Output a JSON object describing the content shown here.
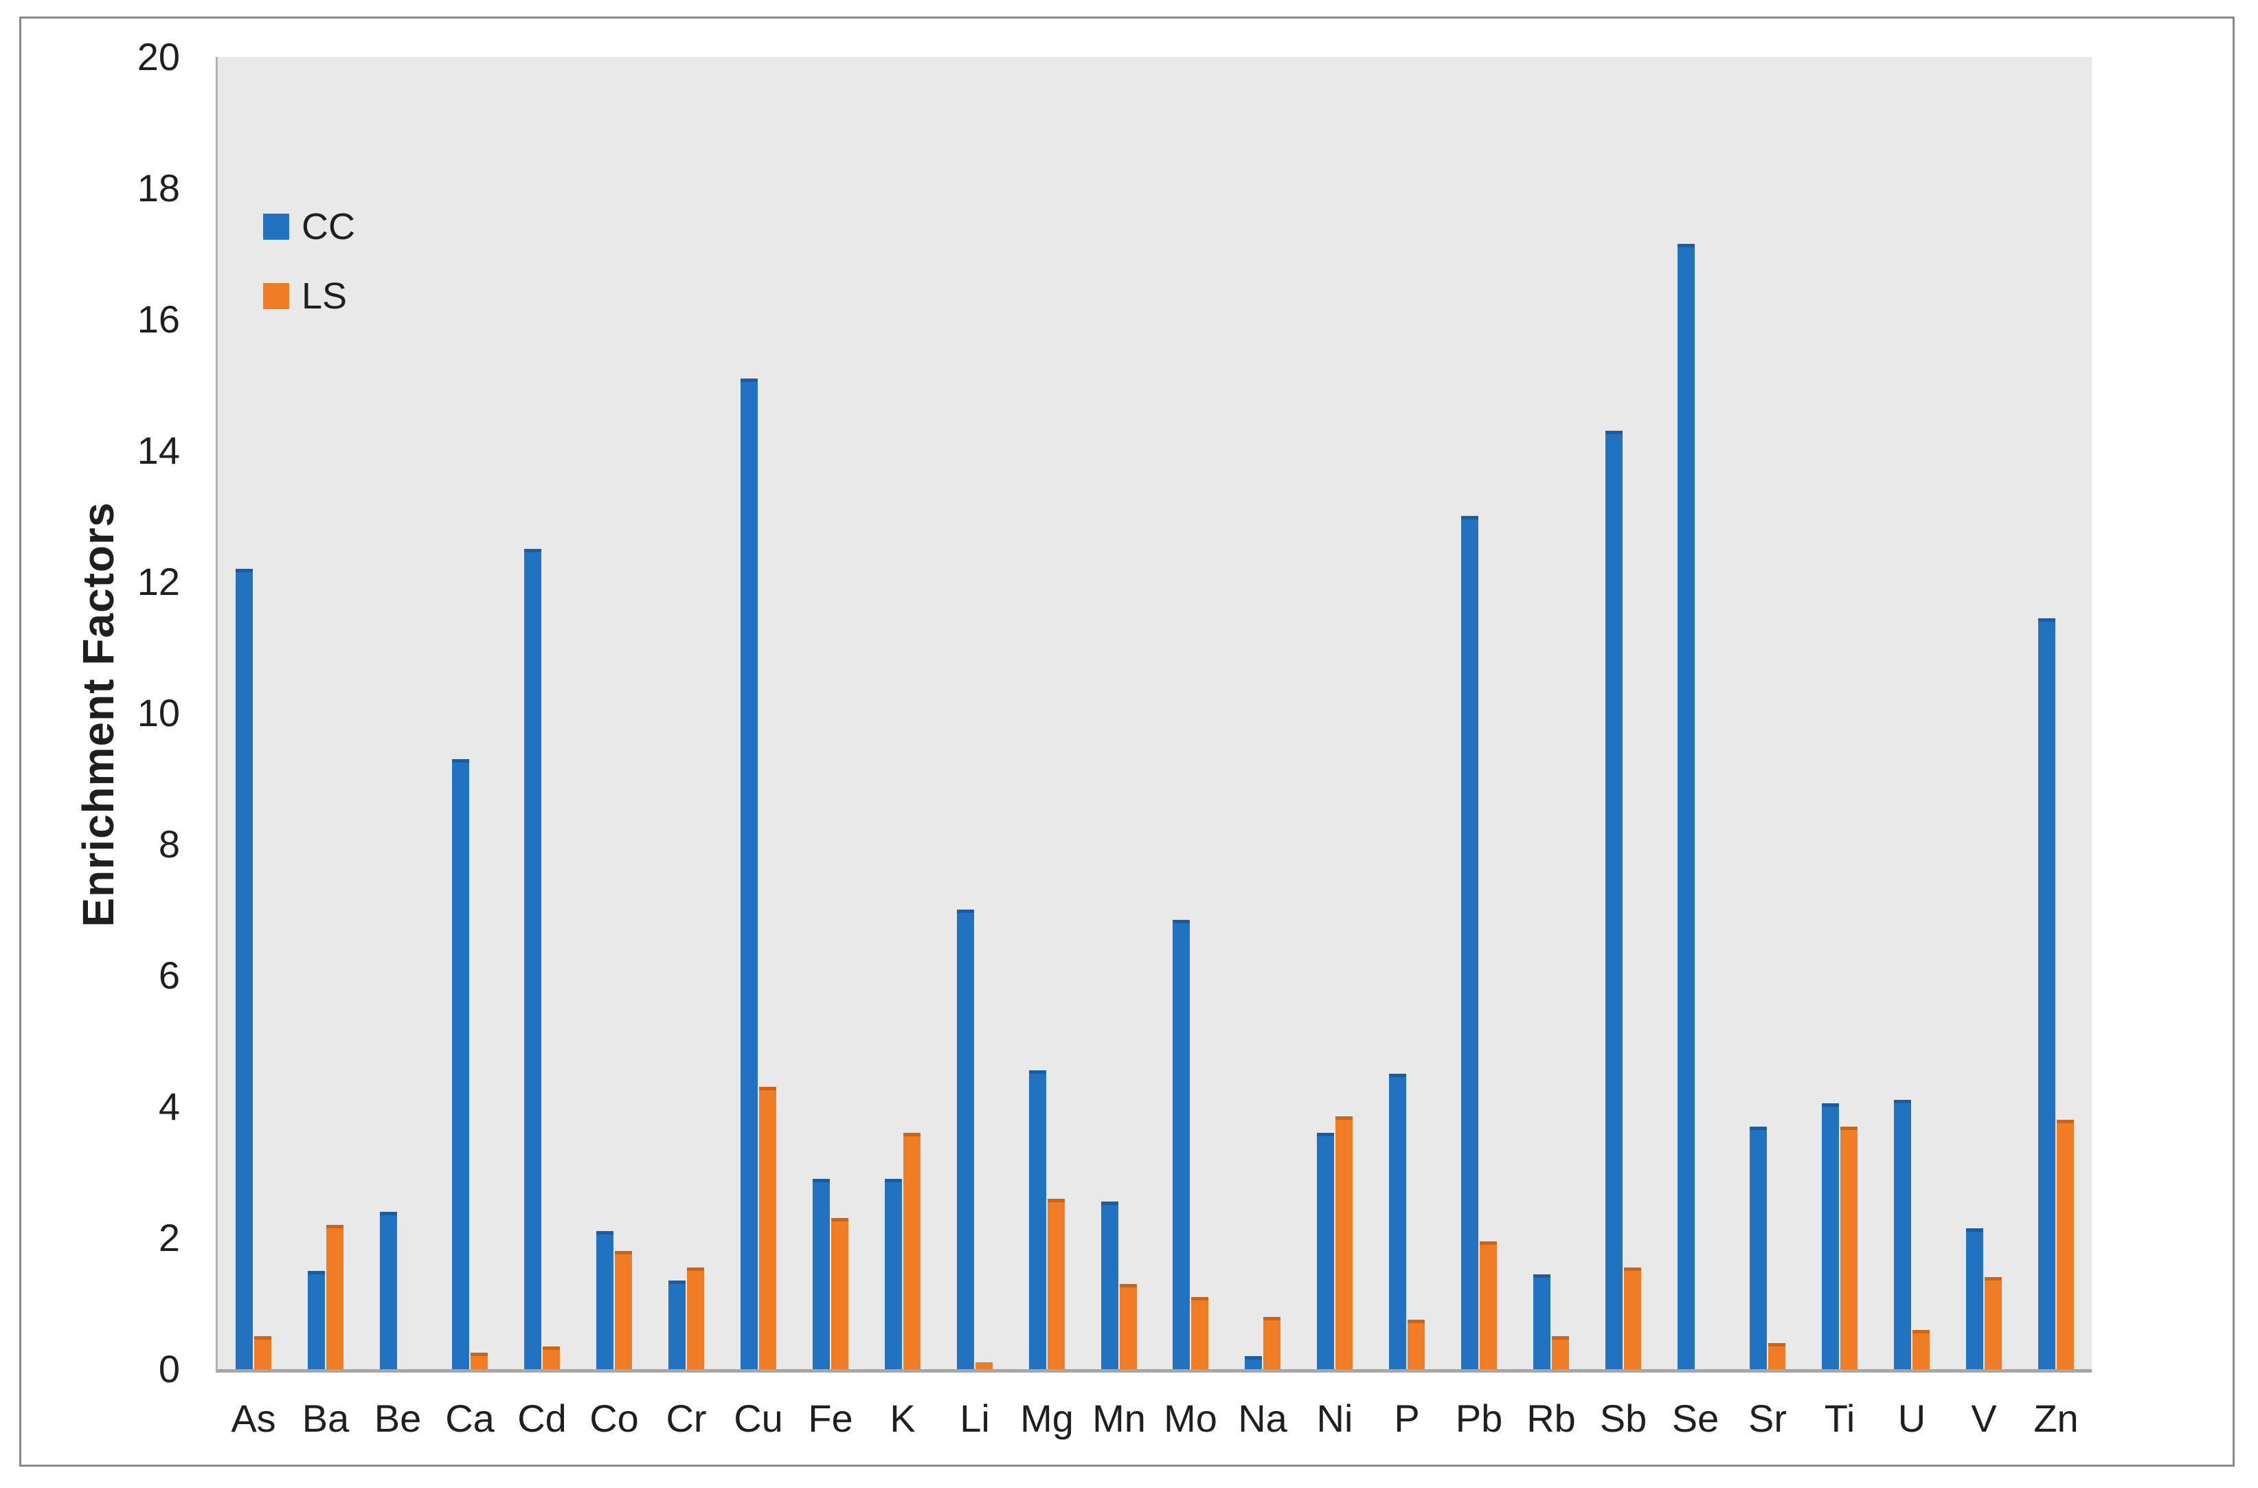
{
  "figure": {
    "background_color": "#ffffff",
    "border_color": "#8a8a8a",
    "plot_background_color": "#e9e9e9",
    "axis_line_color": "#a6a6a6",
    "text_color": "#1f1f1f"
  },
  "chart_data": {
    "type": "bar",
    "title": "",
    "xlabel": "",
    "ylabel": "Enrichment Factors",
    "categories": [
      "As",
      "Ba",
      "Be",
      "Ca",
      "Cd",
      "Co",
      "Cr",
      "Cu",
      "Fe",
      "K",
      "Li",
      "Mg",
      "Mn",
      "Mo",
      "Na",
      "Ni",
      "P",
      "Pb",
      "Rb",
      "Sb",
      "Se",
      "Sr",
      "Ti",
      "U",
      "V",
      "Zn"
    ],
    "series": [
      {
        "name": "CC",
        "color": "#2272c2",
        "edge_color": "#1a5ca3",
        "values": [
          12.2,
          1.5,
          2.4,
          9.3,
          12.5,
          2.1,
          1.35,
          15.1,
          2.9,
          2.9,
          7.0,
          4.55,
          2.55,
          6.85,
          0.2,
          3.6,
          4.5,
          13.0,
          1.45,
          14.3,
          17.15,
          3.7,
          4.05,
          4.1,
          2.15,
          11.45
        ]
      },
      {
        "name": "LS",
        "color": "#f07d25",
        "edge_color": "#cc6317",
        "values": [
          0.5,
          2.2,
          0,
          0.25,
          0.35,
          1.8,
          1.55,
          4.3,
          2.3,
          3.6,
          0.1,
          2.6,
          1.3,
          1.1,
          0.8,
          3.85,
          0.75,
          1.95,
          0.5,
          1.55,
          0,
          0.4,
          3.7,
          0.6,
          1.4,
          3.8
        ]
      }
    ],
    "ylim": [
      0,
      20
    ],
    "ytick_labels": [
      "0",
      "2",
      "4",
      "6",
      "8",
      "10",
      "12",
      "14",
      "16",
      "18",
      "20"
    ],
    "grid": false,
    "legend_position": "top-left-inside",
    "legend_entries": [
      "CC",
      "LS"
    ]
  }
}
